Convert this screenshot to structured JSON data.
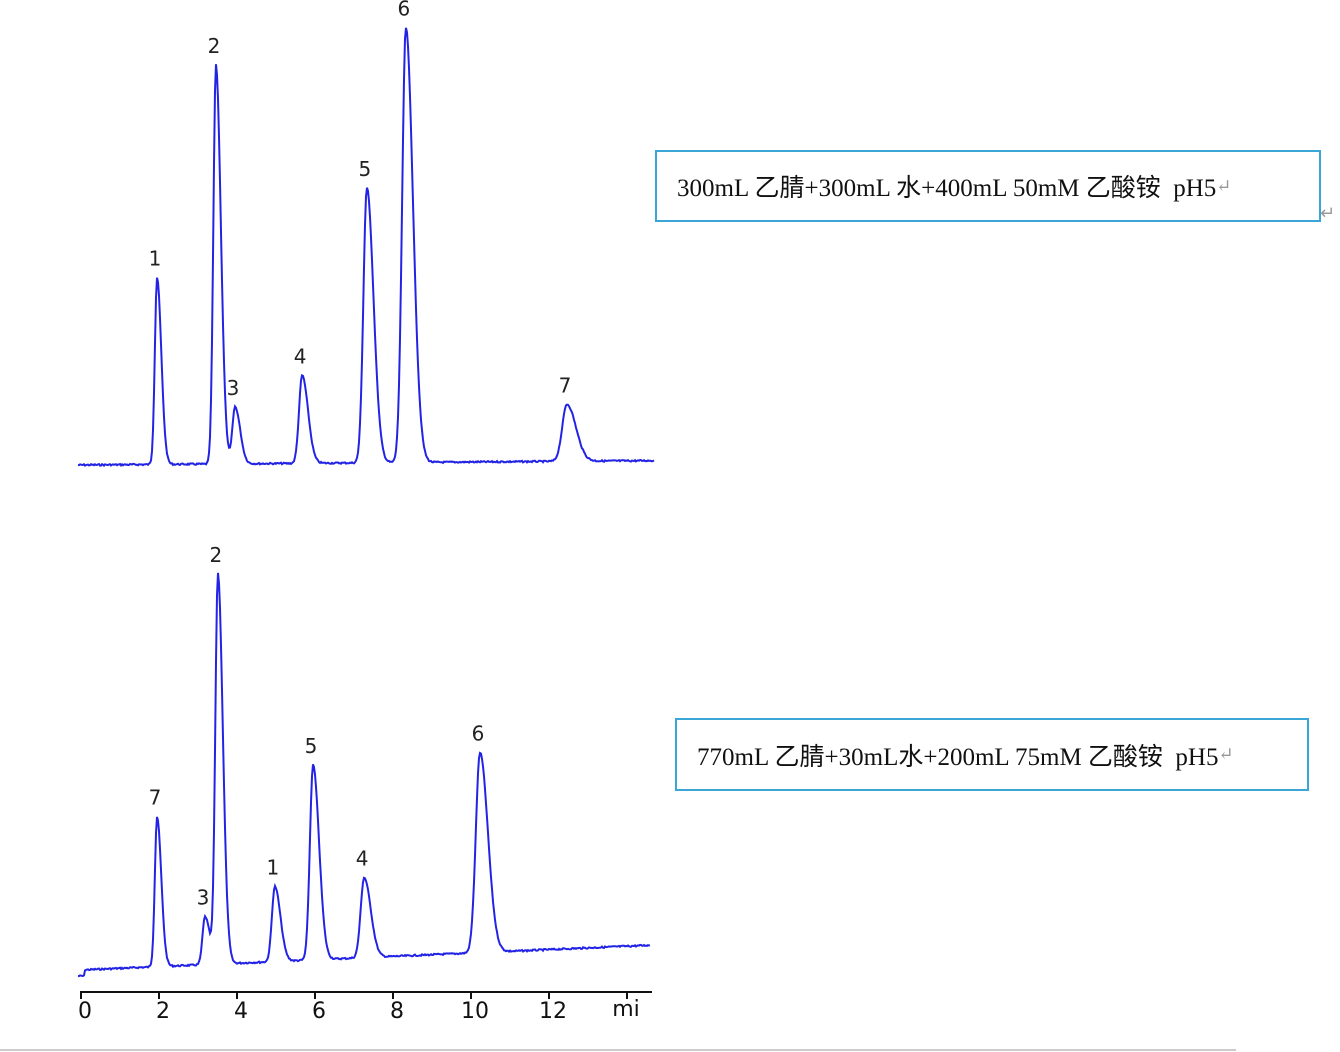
{
  "chart_data": [
    {
      "type": "line",
      "title": "300mL 乙腈+300mL 水+400mL 50mM 乙酸铵  pH5",
      "xlabel": "mi",
      "xlim": [
        0,
        14.7
      ],
      "peaks": [
        {
          "label": "1",
          "time": 1.95,
          "height": 187
        },
        {
          "label": "2",
          "time": 3.46,
          "height": 399
        },
        {
          "label": "3",
          "time": 3.95,
          "height": 57
        },
        {
          "label": "4",
          "time": 5.67,
          "height": 88
        },
        {
          "label": "5",
          "time": 7.33,
          "height": 275
        },
        {
          "label": "6",
          "time": 8.33,
          "height": 435
        },
        {
          "label": "7",
          "time": 12.46,
          "height": 57
        }
      ],
      "color": "#2323e6"
    },
    {
      "type": "line",
      "title": "770mL 乙腈+30mL水+200mL 75mM 乙酸铵  pH5",
      "xlabel": "mi",
      "xlim": [
        0,
        14.7
      ],
      "xticks": [
        0,
        2,
        4,
        6,
        8,
        10,
        12
      ],
      "peaks": [
        {
          "label": "7",
          "time": 1.95,
          "height": 150
        },
        {
          "label": "3",
          "time": 3.18,
          "height": 48
        },
        {
          "label": "2",
          "time": 3.51,
          "height": 390
        },
        {
          "label": "1",
          "time": 4.97,
          "height": 75
        },
        {
          "label": "5",
          "time": 5.95,
          "height": 195
        },
        {
          "label": "4",
          "time": 7.26,
          "height": 80
        },
        {
          "label": "6",
          "time": 10.23,
          "height": 200
        }
      ],
      "color": "#2323e6"
    }
  ],
  "conditions": {
    "top": "300mL 乙腈+300mL 水+400mL 50mM 乙酸铵  pH5",
    "bottom": "770mL 乙腈+30mL水+200mL 75mM 乙酸铵  pH5",
    "return_mark": "↵"
  },
  "axis": {
    "unit_label": "mi"
  }
}
